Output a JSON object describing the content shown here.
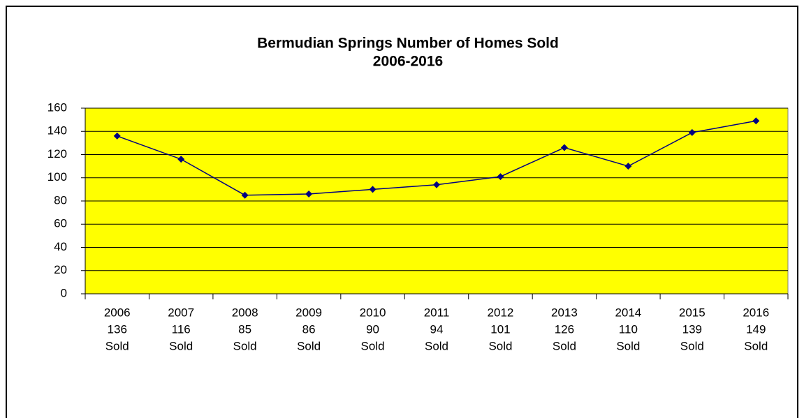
{
  "chart_data": {
    "type": "line",
    "title": [
      "Bermudian Springs Number of Homes Sold",
      "2006-2016"
    ],
    "categories": [
      [
        "2006",
        "136",
        "Sold"
      ],
      [
        "2007",
        "116",
        "Sold"
      ],
      [
        "2008",
        "85",
        "Sold"
      ],
      [
        "2009",
        "86",
        "Sold"
      ],
      [
        "2010",
        "90",
        "Sold"
      ],
      [
        "2011",
        "94",
        "Sold"
      ],
      [
        "2012",
        "101",
        "Sold"
      ],
      [
        "2013",
        "126",
        "Sold"
      ],
      [
        "2014",
        "110",
        "Sold"
      ],
      [
        "2015",
        "139",
        "Sold"
      ],
      [
        "2016",
        "149",
        "Sold"
      ]
    ],
    "values": [
      136,
      116,
      85,
      86,
      90,
      94,
      101,
      126,
      110,
      139,
      149
    ],
    "color": "#000080",
    "plot_background": "#ffff00",
    "ylim": [
      0,
      160
    ],
    "yticks": [
      0,
      20,
      40,
      60,
      80,
      100,
      120,
      140,
      160
    ],
    "grid": true
  }
}
